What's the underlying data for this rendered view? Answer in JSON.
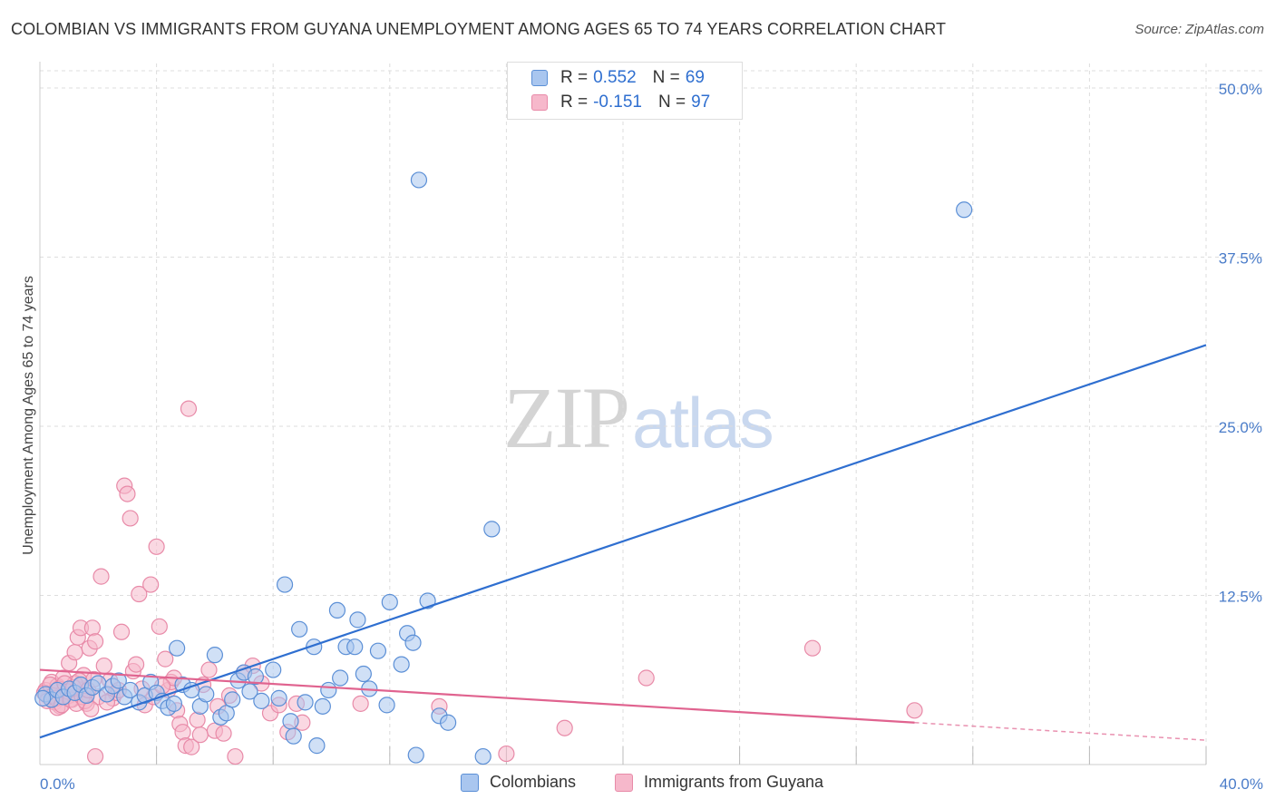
{
  "title": "COLOMBIAN VS IMMIGRANTS FROM GUYANA UNEMPLOYMENT AMONG AGES 65 TO 74 YEARS CORRELATION CHART",
  "source": "Source: ZipAtlas.com",
  "watermark": {
    "part1": "ZIP",
    "part2": "atlas"
  },
  "legend_top": {
    "rows": [
      {
        "r_label": "R = ",
        "r_value": "0.552",
        "n_label": "N = ",
        "n_value": "69"
      },
      {
        "r_label": "R = ",
        "r_value": "-0.151",
        "n_label": "N = ",
        "n_value": "97"
      }
    ]
  },
  "legend_bottom": {
    "items": [
      "Colombians",
      "Immigrants from Guyana"
    ]
  },
  "colors": {
    "blue_fill": "#a9c6ef",
    "blue_stroke": "#5b8fd6",
    "blue_line": "#2f6fd0",
    "pink_fill": "#f6b8cb",
    "pink_stroke": "#e88aa8",
    "pink_line": "#e0638f",
    "grid": "#dddddd",
    "tick_text": "#4a7cc9"
  },
  "chart_data": {
    "type": "scatter",
    "title": "COLOMBIAN VS IMMIGRANTS FROM GUYANA UNEMPLOYMENT AMONG AGES 65 TO 74 YEARS CORRELATION CHART",
    "xlabel": "",
    "ylabel": "Unemployment Among Ages 65 to 74 years",
    "xlim": [
      0,
      40
    ],
    "ylim": [
      0,
      50
    ],
    "x_ticks": [
      0,
      40
    ],
    "x_tick_labels": [
      "0.0%",
      "40.0%"
    ],
    "y_ticks": [
      12.5,
      25,
      37.5,
      50
    ],
    "y_tick_labels": [
      "12.5%",
      "25.0%",
      "37.5%",
      "50.0%"
    ],
    "grid": true,
    "legend": "top-center",
    "series": [
      {
        "name": "Colombians",
        "R": 0.552,
        "N": 69,
        "trend": {
          "x": [
            0,
            40
          ],
          "y": [
            2.0,
            31.0
          ]
        },
        "points": [
          [
            0.2,
            5.2
          ],
          [
            0.4,
            4.8
          ],
          [
            0.6,
            5.5
          ],
          [
            0.8,
            5.0
          ],
          [
            1.0,
            5.6
          ],
          [
            1.2,
            5.3
          ],
          [
            1.4,
            5.9
          ],
          [
            1.6,
            5.1
          ],
          [
            1.8,
            5.7
          ],
          [
            2.0,
            6.0
          ],
          [
            2.3,
            5.2
          ],
          [
            2.5,
            5.8
          ],
          [
            2.7,
            6.2
          ],
          [
            2.9,
            5.0
          ],
          [
            3.1,
            5.5
          ],
          [
            3.4,
            4.6
          ],
          [
            3.6,
            5.1
          ],
          [
            3.8,
            6.1
          ],
          [
            4.0,
            5.3
          ],
          [
            4.2,
            4.7
          ],
          [
            4.4,
            4.2
          ],
          [
            4.6,
            4.5
          ],
          [
            4.7,
            8.6
          ],
          [
            4.9,
            5.9
          ],
          [
            5.2,
            5.5
          ],
          [
            5.5,
            4.3
          ],
          [
            5.7,
            5.2
          ],
          [
            6.0,
            8.1
          ],
          [
            6.2,
            3.5
          ],
          [
            6.4,
            3.8
          ],
          [
            6.6,
            4.8
          ],
          [
            6.8,
            6.2
          ],
          [
            7.0,
            6.8
          ],
          [
            7.2,
            5.4
          ],
          [
            7.4,
            6.5
          ],
          [
            7.6,
            4.7
          ],
          [
            8.0,
            7.0
          ],
          [
            8.2,
            4.9
          ],
          [
            8.4,
            13.3
          ],
          [
            8.6,
            3.2
          ],
          [
            8.7,
            2.1
          ],
          [
            8.9,
            10.0
          ],
          [
            9.1,
            4.6
          ],
          [
            9.4,
            8.7
          ],
          [
            9.5,
            1.4
          ],
          [
            9.7,
            4.3
          ],
          [
            9.9,
            5.5
          ],
          [
            10.2,
            11.4
          ],
          [
            10.3,
            6.4
          ],
          [
            10.5,
            8.7
          ],
          [
            10.8,
            8.7
          ],
          [
            10.9,
            10.7
          ],
          [
            11.1,
            6.7
          ],
          [
            11.3,
            5.6
          ],
          [
            11.6,
            8.4
          ],
          [
            11.9,
            4.4
          ],
          [
            12.0,
            12.0
          ],
          [
            12.4,
            7.4
          ],
          [
            12.6,
            9.7
          ],
          [
            12.8,
            9.0
          ],
          [
            12.9,
            0.7
          ],
          [
            13.3,
            12.1
          ],
          [
            13.0,
            43.2
          ],
          [
            13.7,
            3.6
          ],
          [
            14.0,
            3.1
          ],
          [
            15.2,
            0.6
          ],
          [
            15.5,
            17.4
          ],
          [
            31.7,
            41.0
          ],
          [
            0.1,
            4.9
          ]
        ]
      },
      {
        "name": "Immigrants from Guyana",
        "R": -0.151,
        "N": 97,
        "trend": {
          "x": [
            0,
            30
          ],
          "y": [
            7.0,
            3.1
          ]
        },
        "trend_dashed": {
          "x": [
            30,
            40
          ],
          "y": [
            3.1,
            1.8
          ]
        },
        "points": [
          [
            0.2,
            5.5
          ],
          [
            0.3,
            5.0
          ],
          [
            0.4,
            6.1
          ],
          [
            0.5,
            4.6
          ],
          [
            0.6,
            5.8
          ],
          [
            0.7,
            4.3
          ],
          [
            0.8,
            6.4
          ],
          [
            0.9,
            5.2
          ],
          [
            1.0,
            7.5
          ],
          [
            1.1,
            4.8
          ],
          [
            1.2,
            8.3
          ],
          [
            1.3,
            9.4
          ],
          [
            1.4,
            10.1
          ],
          [
            1.5,
            5.6
          ],
          [
            1.6,
            4.5
          ],
          [
            1.7,
            8.6
          ],
          [
            1.8,
            10.1
          ],
          [
            1.9,
            9.1
          ],
          [
            2.0,
            5.0
          ],
          [
            2.1,
            13.9
          ],
          [
            2.2,
            7.3
          ],
          [
            2.4,
            6.2
          ],
          [
            2.5,
            4.9
          ],
          [
            2.6,
            5.3
          ],
          [
            2.8,
            9.8
          ],
          [
            2.9,
            20.6
          ],
          [
            3.0,
            20.0
          ],
          [
            3.1,
            18.2
          ],
          [
            3.2,
            6.9
          ],
          [
            3.3,
            7.4
          ],
          [
            3.4,
            12.6
          ],
          [
            3.6,
            4.4
          ],
          [
            3.8,
            13.3
          ],
          [
            3.9,
            5.0
          ],
          [
            4.0,
            16.1
          ],
          [
            4.1,
            10.2
          ],
          [
            4.3,
            7.8
          ],
          [
            4.4,
            5.5
          ],
          [
            4.5,
            6.1
          ],
          [
            4.6,
            6.4
          ],
          [
            4.7,
            4.0
          ],
          [
            4.8,
            3.0
          ],
          [
            4.9,
            2.4
          ],
          [
            5.0,
            1.4
          ],
          [
            5.1,
            26.3
          ],
          [
            5.2,
            1.3
          ],
          [
            5.4,
            3.3
          ],
          [
            5.5,
            2.2
          ],
          [
            5.6,
            5.9
          ],
          [
            5.8,
            7.0
          ],
          [
            6.0,
            2.5
          ],
          [
            6.1,
            4.3
          ],
          [
            6.3,
            2.3
          ],
          [
            6.5,
            5.1
          ],
          [
            6.7,
            0.6
          ],
          [
            7.0,
            6.8
          ],
          [
            7.3,
            7.3
          ],
          [
            7.6,
            6.0
          ],
          [
            7.9,
            3.8
          ],
          [
            8.2,
            4.4
          ],
          [
            8.5,
            2.4
          ],
          [
            8.8,
            4.5
          ],
          [
            9.0,
            3.1
          ],
          [
            1.9,
            0.6
          ],
          [
            2.3,
            4.6
          ],
          [
            2.7,
            5.5
          ],
          [
            1.5,
            6.6
          ],
          [
            1.0,
            5.1
          ],
          [
            0.6,
            4.2
          ],
          [
            1.2,
            6.0
          ],
          [
            11.0,
            4.5
          ],
          [
            13.7,
            4.3
          ],
          [
            16.0,
            0.8
          ],
          [
            18.0,
            2.7
          ],
          [
            20.8,
            6.4
          ],
          [
            26.5,
            8.6
          ],
          [
            30.0,
            4.0
          ],
          [
            0.15,
            5.3
          ],
          [
            0.25,
            4.7
          ],
          [
            0.35,
            5.9
          ],
          [
            0.45,
            5.1
          ],
          [
            0.55,
            4.9
          ],
          [
            0.65,
            5.6
          ],
          [
            0.75,
            4.4
          ],
          [
            0.85,
            6.0
          ],
          [
            0.95,
            5.4
          ],
          [
            1.05,
            4.8
          ],
          [
            1.15,
            5.7
          ],
          [
            1.25,
            4.5
          ],
          [
            1.35,
            6.2
          ],
          [
            1.45,
            5.0
          ],
          [
            1.55,
            4.7
          ],
          [
            1.65,
            5.5
          ],
          [
            1.75,
            4.1
          ],
          [
            1.85,
            6.3
          ],
          [
            3.5,
            5.6
          ],
          [
            4.2,
            5.8
          ]
        ]
      }
    ]
  }
}
